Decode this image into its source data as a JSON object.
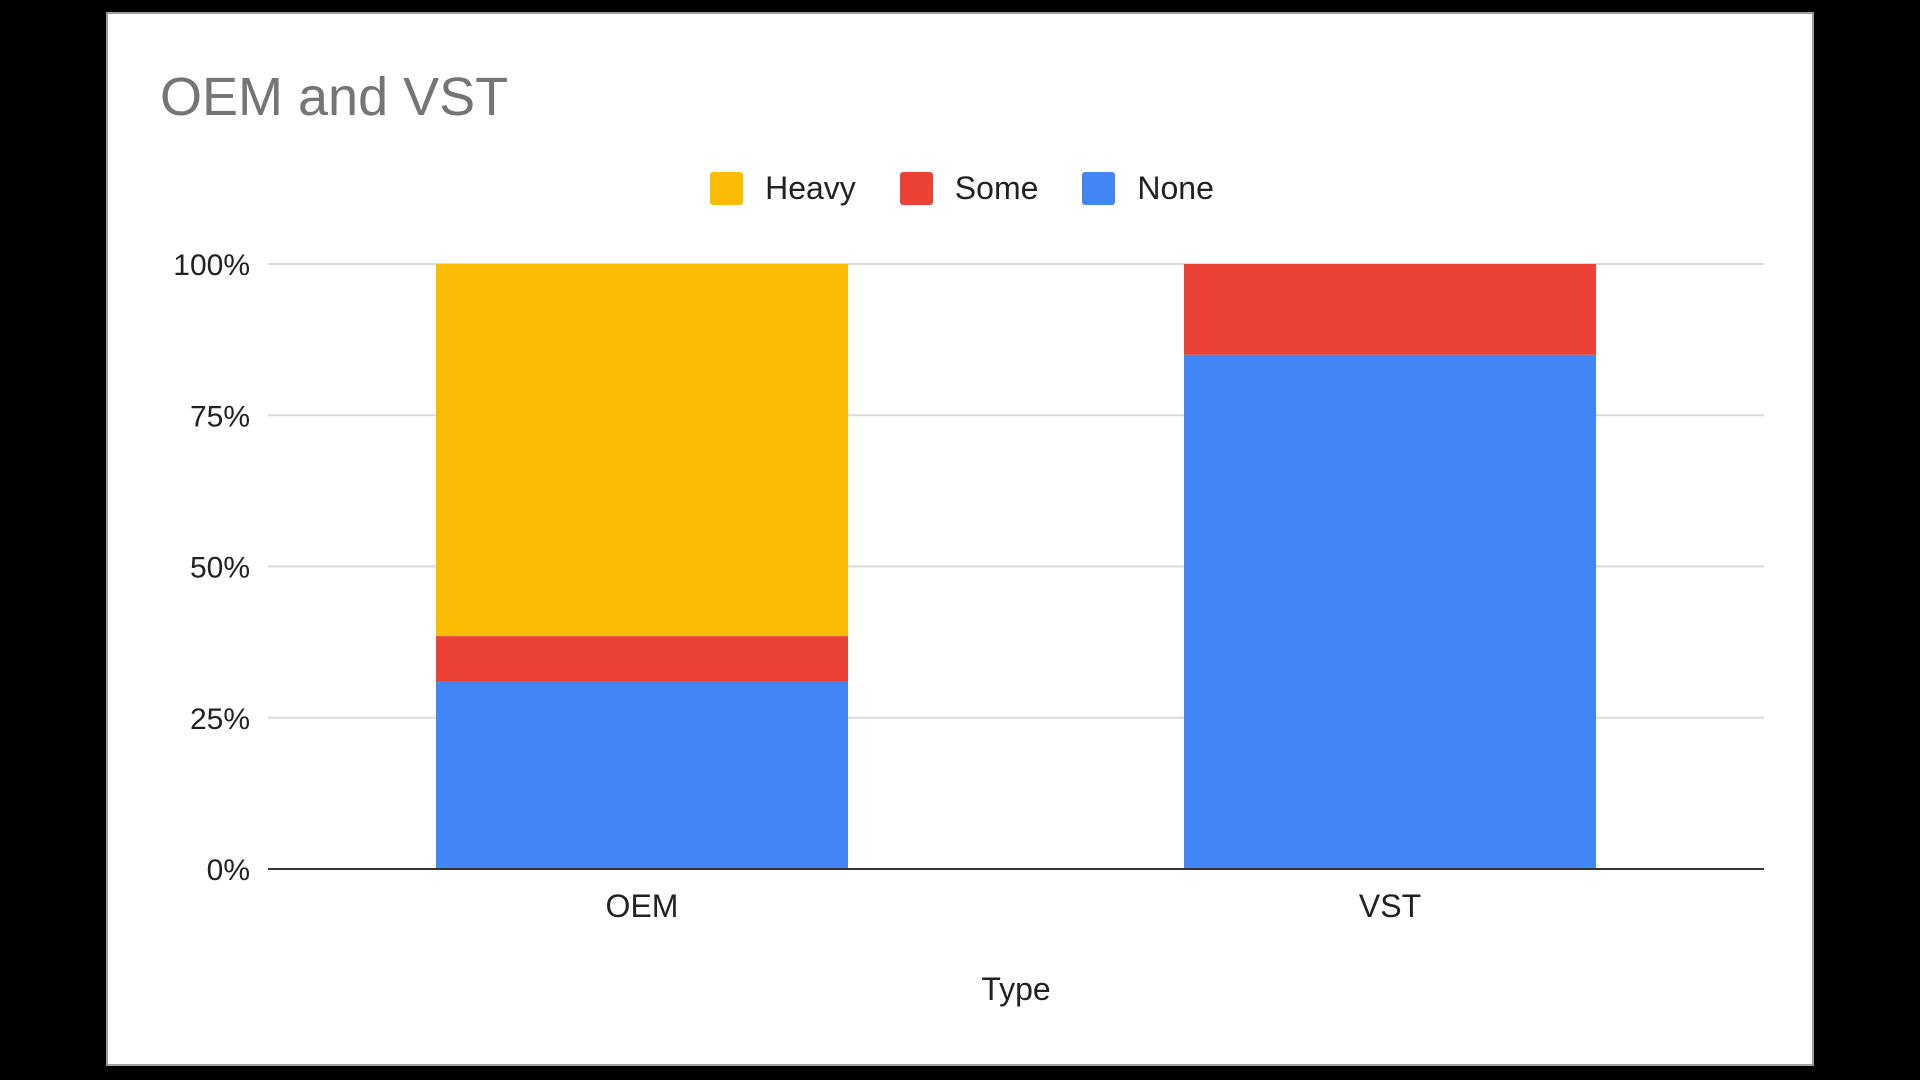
{
  "chart_data": {
    "type": "bar",
    "stacked": "percent",
    "title": "OEM and VST",
    "xlabel": "Type",
    "ylabel": "",
    "categories": [
      "OEM",
      "VST"
    ],
    "series": [
      {
        "name": "None",
        "color": "#4285f4",
        "values": [
          31,
          85
        ]
      },
      {
        "name": "Some",
        "color": "#ea4335",
        "values": [
          7.5,
          15
        ]
      },
      {
        "name": "Heavy",
        "color": "#fbbc04",
        "values": [
          61.5,
          0
        ]
      }
    ],
    "legend_order": [
      "Heavy",
      "Some",
      "None"
    ],
    "legend_position": "top",
    "ylim": [
      0,
      100
    ],
    "yticks": [
      "0%",
      "25%",
      "50%",
      "75%",
      "100%"
    ],
    "grid": true
  }
}
